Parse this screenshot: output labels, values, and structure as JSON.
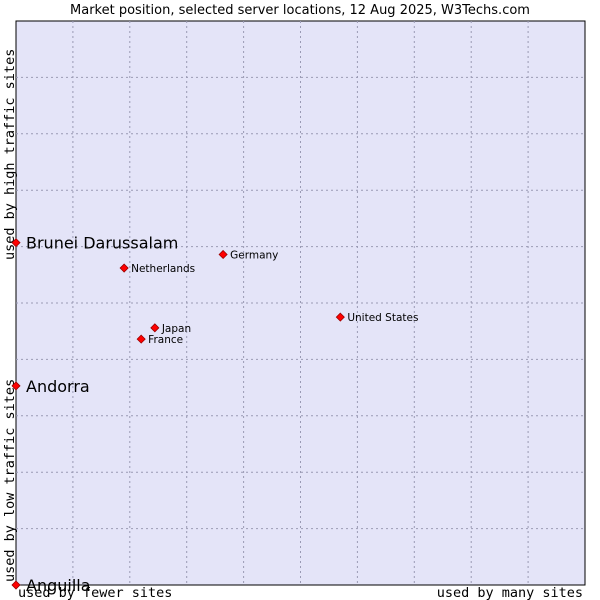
{
  "chart_data": {
    "type": "scatter",
    "title": "Market position, selected server locations, 12 Aug 2025, W3Techs.com",
    "xlabel_left": "used by fewer sites",
    "xlabel_right": "used by many sites",
    "ylabel_bottom": "used by low traffic sites",
    "ylabel_top": "used by high traffic sites",
    "grid": true,
    "points": [
      {
        "label": "Brunei Darussalam",
        "x": 0.0,
        "y": 0.607,
        "emphasis": true
      },
      {
        "label": "Andorra",
        "x": 0.0,
        "y": 0.353,
        "emphasis": true
      },
      {
        "label": "Anguilla",
        "x": 0.0,
        "y": 0.0,
        "emphasis": true
      },
      {
        "label": "Germany",
        "x": 0.364,
        "y": 0.586,
        "emphasis": false
      },
      {
        "label": "Netherlands",
        "x": 0.19,
        "y": 0.562,
        "emphasis": false
      },
      {
        "label": "United States",
        "x": 0.57,
        "y": 0.475,
        "emphasis": false
      },
      {
        "label": "Japan",
        "x": 0.244,
        "y": 0.456,
        "emphasis": false
      },
      {
        "label": "France",
        "x": 0.22,
        "y": 0.436,
        "emphasis": false
      }
    ],
    "colors": {
      "plot_bg": "#e4e4f8",
      "marker": "#ff0000",
      "marker_stroke": "#990000"
    }
  }
}
